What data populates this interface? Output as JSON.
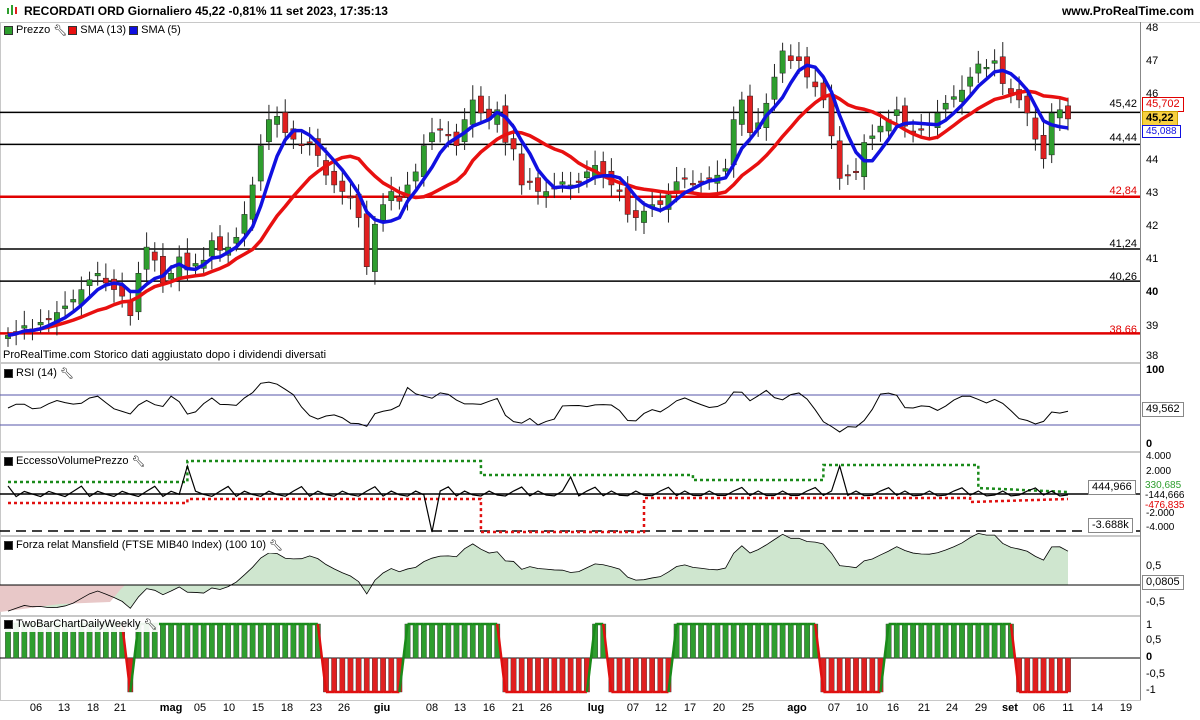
{
  "header": {
    "title": "RECORDATI ORD Giornaliero 45,22 -0,81% 11 set 2023, 17:35:13",
    "site": "www.ProRealTime.com"
  },
  "legend": {
    "price": "Prezzo",
    "sma13": "SMA (13)",
    "sma5": "SMA (5)",
    "rsi": "RSI (14)",
    "volume": "EccessoVolumePrezzo",
    "mansfield": "Forza relat Mansfield (FTSE MIB40 Index) (100 10)",
    "twobar": "TwoBarChartDailyWeekly"
  },
  "note": "ProRealTime.com Storico dati aggiustato dopo i dividendi diversati",
  "colors": {
    "up": "#2e9e2e",
    "down": "#e02020",
    "sma13": "#e81010",
    "sma5": "#1010e0",
    "mansfield_fill": "#cfe6cf",
    "mansfield_neg": "#e8c8c8"
  },
  "price_axis": {
    "ticks": [
      "48",
      "47",
      "46",
      "45",
      "44",
      "43",
      "42",
      "41",
      "40",
      "39",
      "38"
    ],
    "min": 38,
    "max": 48
  },
  "levels": [
    {
      "value": 45.42,
      "label": "45,42",
      "color": "#000"
    },
    {
      "value": 44.44,
      "label": "44,44",
      "color": "#000"
    },
    {
      "value": 42.84,
      "label": "42,84",
      "color": "#e00000"
    },
    {
      "value": 41.24,
      "label": "41,24",
      "color": "#000"
    },
    {
      "value": 40.26,
      "label": "40,26",
      "color": "#000"
    },
    {
      "value": 38.66,
      "label": "38,66",
      "color": "#e00000"
    }
  ],
  "price_boxes": {
    "sma13": "45,702",
    "last": "45,22",
    "sma5": "45,088"
  },
  "rsi": {
    "ticks": [
      "100",
      "0"
    ],
    "value": "49,562"
  },
  "volume": {
    "ticks": [
      "4.000",
      "2.000",
      "0",
      "-2.000",
      "-4.000"
    ],
    "values": [
      "444,966",
      "330,685",
      "-144,666",
      "-476,835",
      "-3.688k"
    ]
  },
  "mansfield": {
    "ticks": [
      "0,5",
      "0",
      "-0,5"
    ],
    "value": "0,0805"
  },
  "twobar": {
    "ticks": [
      "1",
      "0,5",
      "0",
      "-0,5",
      "-1"
    ]
  },
  "x_axis": [
    {
      "label": "06",
      "bold": false
    },
    {
      "label": "13",
      "bold": false
    },
    {
      "label": "18",
      "bold": false
    },
    {
      "label": "21",
      "bold": false
    },
    {
      "label": "mag",
      "bold": true
    },
    {
      "label": "05",
      "bold": false
    },
    {
      "label": "10",
      "bold": false
    },
    {
      "label": "15",
      "bold": false
    },
    {
      "label": "18",
      "bold": false
    },
    {
      "label": "23",
      "bold": false
    },
    {
      "label": "26",
      "bold": false
    },
    {
      "label": "giu",
      "bold": true
    },
    {
      "label": "08",
      "bold": false
    },
    {
      "label": "13",
      "bold": false
    },
    {
      "label": "16",
      "bold": false
    },
    {
      "label": "21",
      "bold": false
    },
    {
      "label": "26",
      "bold": false
    },
    {
      "label": "lug",
      "bold": true
    },
    {
      "label": "07",
      "bold": false
    },
    {
      "label": "12",
      "bold": false
    },
    {
      "label": "17",
      "bold": false
    },
    {
      "label": "20",
      "bold": false
    },
    {
      "label": "25",
      "bold": false
    },
    {
      "label": "ago",
      "bold": true
    },
    {
      "label": "07",
      "bold": false
    },
    {
      "label": "10",
      "bold": false
    },
    {
      "label": "16",
      "bold": false
    },
    {
      "label": "21",
      "bold": false
    },
    {
      "label": "24",
      "bold": false
    },
    {
      "label": "29",
      "bold": false
    },
    {
      "label": "set",
      "bold": true
    },
    {
      "label": "06",
      "bold": false
    },
    {
      "label": "11",
      "bold": false
    },
    {
      "label": "14",
      "bold": false
    },
    {
      "label": "19",
      "bold": false
    }
  ],
  "chart_data": {
    "type": "candlestick",
    "series": [
      {
        "name": "Prezzo",
        "closes": [
          38.6,
          38.7,
          38.9,
          38.8,
          39.0,
          39.1,
          39.3,
          39.5,
          39.7,
          40.0,
          40.3,
          40.5,
          40.2,
          40.0,
          39.8,
          39.2,
          40.5,
          41.3,
          40.9,
          40.2,
          40.5,
          41.0,
          40.6,
          40.8,
          40.9,
          41.5,
          41.2,
          41.3,
          41.6,
          42.3,
          43.2,
          44.4,
          45.2,
          45.3,
          44.8,
          44.6,
          44.4,
          44.5,
          44.1,
          43.5,
          43.2,
          43.0,
          42.8,
          42.2,
          40.7,
          42.0,
          42.6,
          43.0,
          42.7,
          43.2,
          43.6,
          44.4,
          44.8,
          44.9,
          44.7,
          44.4,
          45.2,
          45.8,
          45.4,
          45.2,
          45.5,
          44.5,
          44.3,
          43.2,
          43.3,
          43.0,
          43.0,
          43.1,
          43.3,
          43.2,
          43.3,
          43.6,
          43.8,
          43.5,
          43.2,
          43.0,
          42.3,
          42.2,
          42.4,
          42.6,
          42.6,
          42.9,
          43.3,
          43.4,
          43.2,
          43.3,
          43.4,
          43.5,
          43.7,
          45.2,
          45.8,
          44.8,
          45.1,
          45.7,
          46.5,
          47.3,
          47.0,
          47.0,
          46.5,
          46.2,
          45.8,
          44.7,
          43.4,
          43.5,
          43.6,
          44.5,
          44.7,
          45.0,
          45.2,
          45.5,
          45.0,
          44.8,
          44.9,
          45.1,
          45.4,
          45.7,
          45.9,
          46.1,
          46.5,
          46.9,
          46.8,
          47.0,
          46.3,
          46.0,
          45.8,
          45.4,
          44.6,
          44.0,
          45.4,
          45.5,
          45.22
        ],
        "sma13_name": "SMA (13)",
        "sma5_name": "SMA (5)"
      },
      {
        "name": "RSI (14)",
        "last": 49.562
      },
      {
        "name": "EccessoVolumePrezzo",
        "last": 444.966
      },
      {
        "name": "Forza relat Mansfield (FTSE MIB40 Index) (100 10)",
        "last": 0.0805
      },
      {
        "name": "TwoBarChartDailyWeekly"
      }
    ]
  }
}
